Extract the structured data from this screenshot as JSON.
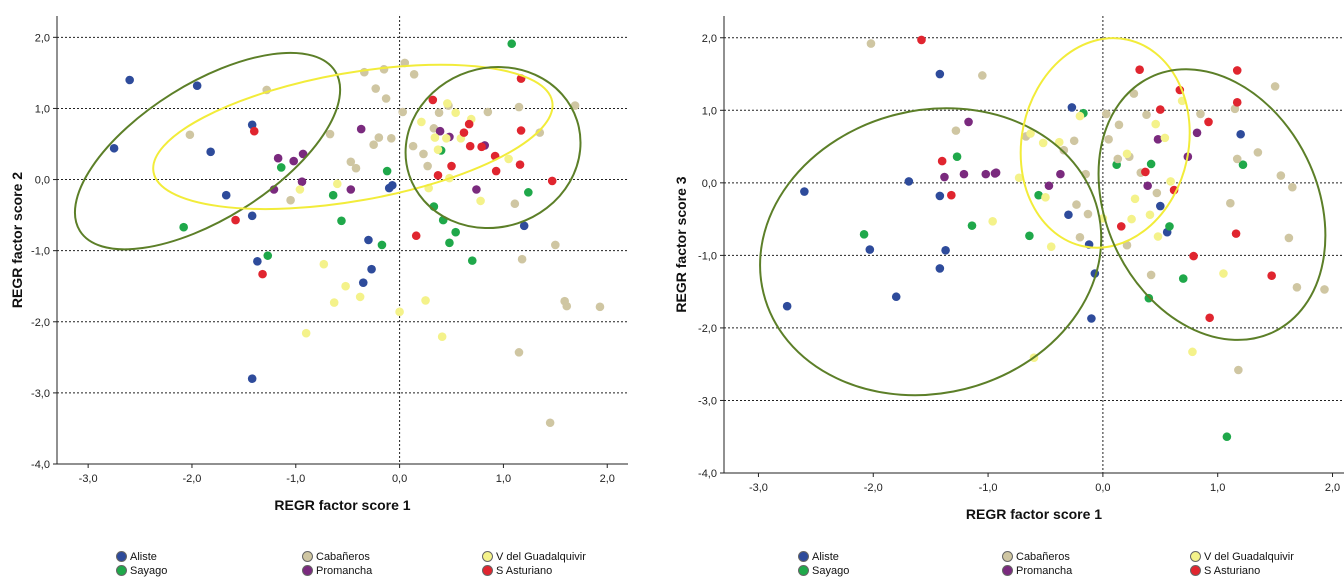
{
  "colors": {
    "Aliste": "#2e4b9b",
    "Sayago": "#1fa84a",
    "Cabañeros": "#cfc6a2",
    "Promancha": "#7a2a7e",
    "V del Guadalquivir": "#f4f28a",
    "S Asturiano": "#e0252f",
    "ellipse_green": "#5c7f28",
    "ellipse_yellow": "#f2ec3a"
  },
  "legend": {
    "items": [
      {
        "label": "Aliste",
        "color": "#2e4b9b"
      },
      {
        "label": "Sayago",
        "color": "#1fa84a"
      },
      {
        "label": "Cabañeros",
        "color": "#cfc6a2"
      },
      {
        "label": "Promancha",
        "color": "#7a2a7e"
      },
      {
        "label": "V del Guadalquivir",
        "color": "#f4f28a"
      },
      {
        "label": "S Asturiano",
        "color": "#e0252f"
      }
    ]
  },
  "chart_data": [
    {
      "type": "scatter",
      "xlabel": "REGR factor score 1",
      "ylabel": "REGR factor score 2",
      "xlim": [
        -3.3,
        2.2
      ],
      "ylim": [
        -4.0,
        2.3
      ],
      "xticks": [
        "-3,0",
        "-2,0",
        "-1,0",
        "0,0",
        "1,0",
        "2,0"
      ],
      "yticks": [
        "-4,0",
        "-3,0",
        "-2,0",
        "-1,0",
        "0,0",
        "1,0",
        "2,0"
      ],
      "grid": "horizontal dashed at y ticks, dotted reference line at x=0",
      "series": [
        {
          "name": "Aliste",
          "points": [
            [
              -2.6,
              1.4
            ],
            [
              -2.75,
              0.44
            ],
            [
              -1.95,
              1.32
            ],
            [
              -1.82,
              0.39
            ],
            [
              -1.67,
              -0.22
            ],
            [
              -1.42,
              0.77
            ],
            [
              -1.42,
              -0.51
            ],
            [
              -1.37,
              -1.15
            ],
            [
              -1.42,
              -2.8
            ],
            [
              -0.3,
              -0.85
            ],
            [
              -0.1,
              -0.12
            ],
            [
              -0.07,
              -0.08
            ],
            [
              -0.35,
              -1.45
            ],
            [
              -0.27,
              -1.26
            ],
            [
              1.2,
              -0.65
            ]
          ]
        },
        {
          "name": "Sayago",
          "points": [
            [
              -2.08,
              -0.67
            ],
            [
              -1.14,
              0.17
            ],
            [
              -1.27,
              -1.07
            ],
            [
              -0.56,
              -0.58
            ],
            [
              -0.64,
              -0.22
            ],
            [
              -0.17,
              -0.92
            ],
            [
              -0.12,
              0.12
            ],
            [
              0.33,
              -0.38
            ],
            [
              0.42,
              -0.57
            ],
            [
              0.48,
              -0.89
            ],
            [
              0.54,
              -0.74
            ],
            [
              0.4,
              0.41
            ],
            [
              0.7,
              -1.14
            ],
            [
              1.24,
              -0.18
            ],
            [
              1.08,
              1.91
            ]
          ]
        },
        {
          "name": "Cabañeros",
          "points": [
            [
              -2.02,
              0.63
            ],
            [
              -1.28,
              1.26
            ],
            [
              -0.67,
              0.64
            ],
            [
              -0.34,
              1.51
            ],
            [
              -0.15,
              1.55
            ],
            [
              -0.23,
              1.28
            ],
            [
              -0.13,
              1.14
            ],
            [
              -0.2,
              0.59
            ],
            [
              -0.25,
              0.49
            ],
            [
              -0.47,
              0.25
            ],
            [
              -0.42,
              0.16
            ],
            [
              -1.05,
              -0.29
            ],
            [
              -0.08,
              0.58
            ],
            [
              0.03,
              0.95
            ],
            [
              0.05,
              1.64
            ],
            [
              0.14,
              1.48
            ],
            [
              0.13,
              0.47
            ],
            [
              0.23,
              0.36
            ],
            [
              0.27,
              0.19
            ],
            [
              0.38,
              0.94
            ],
            [
              0.47,
              1.04
            ],
            [
              0.33,
              0.72
            ],
            [
              0.85,
              0.95
            ],
            [
              1.15,
              1.02
            ],
            [
              1.17,
              1.42
            ],
            [
              1.35,
              0.66
            ],
            [
              1.69,
              1.04
            ],
            [
              1.11,
              -0.34
            ],
            [
              1.18,
              -1.12
            ],
            [
              1.5,
              -0.92
            ],
            [
              1.59,
              -1.71
            ],
            [
              1.61,
              -1.78
            ],
            [
              1.93,
              -1.79
            ],
            [
              1.15,
              -2.43
            ],
            [
              1.45,
              -3.42
            ]
          ]
        },
        {
          "name": "Promancha",
          "points": [
            [
              -1.17,
              0.3
            ],
            [
              -1.02,
              0.26
            ],
            [
              -0.93,
              0.36
            ],
            [
              -0.94,
              -0.03
            ],
            [
              -1.21,
              -0.14
            ],
            [
              -0.37,
              0.71
            ],
            [
              -0.47,
              -0.14
            ],
            [
              0.39,
              0.68
            ],
            [
              0.48,
              0.6
            ],
            [
              0.74,
              -0.14
            ],
            [
              0.82,
              0.48
            ]
          ]
        },
        {
          "name": "V del Guadalquivir",
          "points": [
            [
              -0.96,
              -0.14
            ],
            [
              -0.73,
              -1.19
            ],
            [
              -0.63,
              -1.73
            ],
            [
              -0.52,
              -1.5
            ],
            [
              -0.38,
              -1.65
            ],
            [
              -0.9,
              -2.16
            ],
            [
              -0.6,
              -0.06
            ],
            [
              0.0,
              -1.86
            ],
            [
              0.25,
              -1.7
            ],
            [
              0.41,
              -2.21
            ],
            [
              0.21,
              0.81
            ],
            [
              0.54,
              0.94
            ],
            [
              0.59,
              0.58
            ],
            [
              0.69,
              0.85
            ],
            [
              0.28,
              -0.12
            ],
            [
              0.78,
              -0.3
            ],
            [
              0.48,
              0.02
            ],
            [
              1.05,
              0.29
            ],
            [
              0.37,
              0.42
            ],
            [
              0.46,
              1.07
            ],
            [
              0.45,
              0.58
            ],
            [
              0.34,
              0.59
            ]
          ]
        },
        {
          "name": "S Asturiano",
          "points": [
            [
              -1.58,
              -0.57
            ],
            [
              -1.4,
              0.68
            ],
            [
              -1.32,
              -1.33
            ],
            [
              0.16,
              -0.79
            ],
            [
              0.37,
              0.06
            ],
            [
              0.32,
              1.12
            ],
            [
              0.5,
              0.19
            ],
            [
              0.62,
              0.66
            ],
            [
              0.67,
              0.78
            ],
            [
              0.68,
              0.47
            ],
            [
              0.79,
              0.46
            ],
            [
              0.92,
              0.33
            ],
            [
              0.93,
              0.12
            ],
            [
              1.17,
              0.69
            ],
            [
              1.17,
              1.42
            ],
            [
              1.16,
              0.21
            ],
            [
              1.47,
              -0.02
            ]
          ]
        }
      ]
    },
    {
      "type": "scatter",
      "xlabel": "REGR factor score 1",
      "ylabel": "REGR factor score 3",
      "xlim": [
        -3.3,
        2.1
      ],
      "ylim": [
        -4.0,
        2.3
      ],
      "xticks": [
        "-3,0",
        "-2,0",
        "-1,0",
        "0,0",
        "1,0",
        "2,0"
      ],
      "yticks": [
        "-4,0",
        "-3,0",
        "-2,0",
        "-1,0",
        "0,0",
        "1,0",
        "2,0"
      ],
      "grid": "horizontal dashed at y ticks, dotted reference line at x=0",
      "series": [
        {
          "name": "Aliste",
          "points": [
            [
              -2.6,
              -0.12
            ],
            [
              -2.75,
              -1.7
            ],
            [
              -2.03,
              -0.92
            ],
            [
              -1.8,
              -1.57
            ],
            [
              -1.69,
              0.02
            ],
            [
              -1.42,
              1.5
            ],
            [
              -1.42,
              -0.18
            ],
            [
              -1.37,
              -0.93
            ],
            [
              -1.42,
              -1.18
            ],
            [
              -0.3,
              -0.44
            ],
            [
              -0.27,
              1.04
            ],
            [
              -0.12,
              -0.85
            ],
            [
              -0.07,
              -1.25
            ],
            [
              -0.1,
              -1.87
            ],
            [
              0.5,
              -0.32
            ],
            [
              0.56,
              -0.68
            ],
            [
              1.2,
              0.67
            ]
          ]
        },
        {
          "name": "Sayago",
          "points": [
            [
              -2.08,
              -0.71
            ],
            [
              -1.14,
              -0.59
            ],
            [
              -1.27,
              0.36
            ],
            [
              -0.64,
              -0.73
            ],
            [
              -0.56,
              -0.17
            ],
            [
              -0.17,
              0.96
            ],
            [
              0.12,
              0.25
            ],
            [
              0.42,
              0.26
            ],
            [
              0.58,
              -0.6
            ],
            [
              0.7,
              -1.32
            ],
            [
              0.4,
              -1.59
            ],
            [
              1.22,
              0.25
            ],
            [
              1.08,
              -3.5
            ]
          ]
        },
        {
          "name": "Cabañeros",
          "points": [
            [
              -2.02,
              1.92
            ],
            [
              -1.28,
              0.72
            ],
            [
              -1.05,
              1.48
            ],
            [
              -0.67,
              0.64
            ],
            [
              -0.34,
              0.45
            ],
            [
              -0.15,
              0.12
            ],
            [
              -0.23,
              -0.3
            ],
            [
              -0.13,
              -0.43
            ],
            [
              -0.2,
              -0.75
            ],
            [
              -0.25,
              0.58
            ],
            [
              0.03,
              0.95
            ],
            [
              0.05,
              0.6
            ],
            [
              0.14,
              0.8
            ],
            [
              0.13,
              0.33
            ],
            [
              0.23,
              0.36
            ],
            [
              0.27,
              1.23
            ],
            [
              0.38,
              0.94
            ],
            [
              0.47,
              -0.14
            ],
            [
              0.33,
              0.14
            ],
            [
              0.85,
              0.95
            ],
            [
              1.15,
              1.02
            ],
            [
              1.17,
              0.33
            ],
            [
              1.35,
              0.42
            ],
            [
              1.55,
              0.1
            ],
            [
              1.65,
              -0.06
            ],
            [
              1.11,
              -0.28
            ],
            [
              1.18,
              -2.58
            ],
            [
              1.5,
              1.33
            ],
            [
              1.62,
              -0.76
            ],
            [
              1.69,
              -1.44
            ],
            [
              1.93,
              -1.47
            ],
            [
              0.42,
              -1.27
            ],
            [
              0.21,
              -0.86
            ]
          ]
        },
        {
          "name": "Promancha",
          "points": [
            [
              -1.17,
              0.84
            ],
            [
              -1.02,
              0.12
            ],
            [
              -0.93,
              0.14
            ],
            [
              -0.94,
              0.13
            ],
            [
              -1.21,
              0.12
            ],
            [
              -1.38,
              0.08
            ],
            [
              -0.37,
              0.12
            ],
            [
              -0.47,
              -0.04
            ],
            [
              0.39,
              -0.04
            ],
            [
              0.48,
              0.6
            ],
            [
              0.74,
              0.36
            ],
            [
              0.82,
              0.69
            ]
          ]
        },
        {
          "name": "V del Guadalquivir",
          "points": [
            [
              -0.96,
              -0.53
            ],
            [
              -0.73,
              0.07
            ],
            [
              -0.63,
              0.68
            ],
            [
              -0.52,
              0.55
            ],
            [
              -0.38,
              0.56
            ],
            [
              -0.6,
              -2.41
            ],
            [
              0.0,
              -0.49
            ],
            [
              0.25,
              -0.5
            ],
            [
              0.41,
              -0.44
            ],
            [
              0.21,
              0.4
            ],
            [
              0.54,
              0.62
            ],
            [
              0.59,
              0.02
            ],
            [
              0.69,
              1.13
            ],
            [
              0.28,
              -0.22
            ],
            [
              0.78,
              -2.33
            ],
            [
              0.48,
              -0.74
            ],
            [
              1.05,
              -1.25
            ],
            [
              0.46,
              0.81
            ],
            [
              -0.2,
              0.92
            ],
            [
              -0.45,
              -0.88
            ],
            [
              -0.5,
              -0.2
            ]
          ]
        },
        {
          "name": "S Asturiano",
          "points": [
            [
              -1.58,
              1.97
            ],
            [
              -1.4,
              0.3
            ],
            [
              -1.32,
              -0.17
            ],
            [
              0.16,
              -0.6
            ],
            [
              0.37,
              0.15
            ],
            [
              0.32,
              1.56
            ],
            [
              0.5,
              1.01
            ],
            [
              0.62,
              -0.1
            ],
            [
              0.67,
              1.28
            ],
            [
              0.79,
              -1.01
            ],
            [
              0.92,
              0.84
            ],
            [
              0.93,
              -1.86
            ],
            [
              1.17,
              1.11
            ],
            [
              1.17,
              1.55
            ],
            [
              1.16,
              -0.7
            ],
            [
              1.47,
              -1.28
            ]
          ]
        }
      ]
    }
  ]
}
